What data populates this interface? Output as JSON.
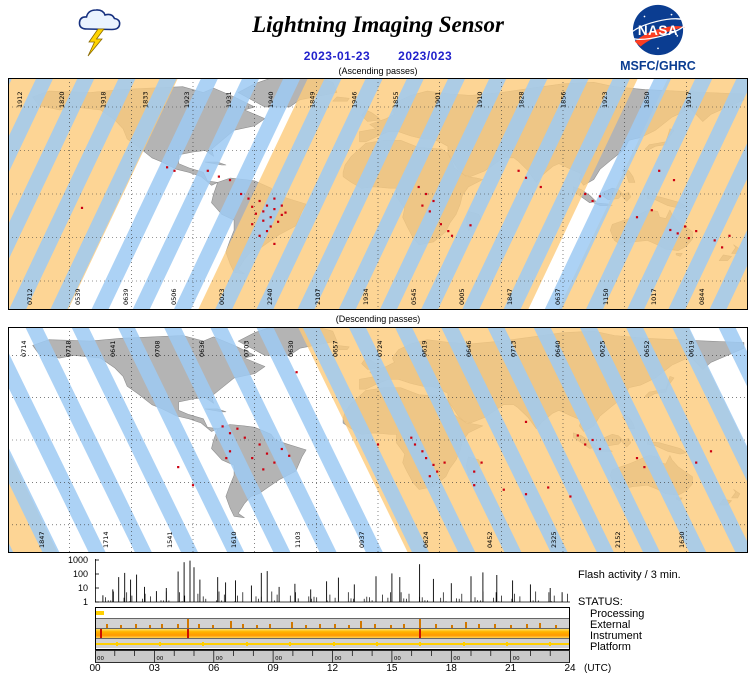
{
  "header": {
    "title": "Lightning Imaging Sensor",
    "date_iso": "2023-01-23",
    "date_doy": "2023/023",
    "agency": "MSFC/GHRC",
    "nasa_logo_text": "NASA"
  },
  "maps": {
    "ascending": {
      "caption": "(Ascending passes)",
      "top_labels": [
        "1912",
        "1820",
        "1918",
        "1833",
        "1923",
        "1931",
        "1940",
        "1849",
        "1946",
        "1855",
        "1901",
        "1910",
        "1828",
        "1856",
        "1923",
        "1850",
        "1917"
      ],
      "bottom_labels": [
        "0712",
        "0539",
        "0639",
        "0506",
        "0023",
        "2240",
        "2107",
        "1934",
        "0545",
        "0005",
        "1847",
        "0637",
        "1150",
        "1017",
        "0844"
      ],
      "flash_dots": [
        [
          0.1,
          0.56
        ],
        [
          0.215,
          0.385
        ],
        [
          0.225,
          0.4
        ],
        [
          0.27,
          0.4
        ],
        [
          0.285,
          0.425
        ],
        [
          0.3,
          0.44
        ],
        [
          0.315,
          0.5
        ],
        [
          0.325,
          0.52
        ],
        [
          0.33,
          0.555
        ],
        [
          0.34,
          0.53
        ],
        [
          0.345,
          0.575
        ],
        [
          0.35,
          0.55
        ],
        [
          0.355,
          0.6
        ],
        [
          0.36,
          0.565
        ],
        [
          0.365,
          0.62
        ],
        [
          0.37,
          0.59
        ],
        [
          0.355,
          0.64
        ],
        [
          0.345,
          0.615
        ],
        [
          0.335,
          0.585
        ],
        [
          0.36,
          0.52
        ],
        [
          0.37,
          0.55
        ],
        [
          0.375,
          0.58
        ],
        [
          0.33,
          0.63
        ],
        [
          0.35,
          0.66
        ],
        [
          0.34,
          0.68
        ],
        [
          0.36,
          0.715
        ],
        [
          0.555,
          0.47
        ],
        [
          0.565,
          0.5
        ],
        [
          0.575,
          0.53
        ],
        [
          0.56,
          0.55
        ],
        [
          0.57,
          0.575
        ],
        [
          0.585,
          0.63
        ],
        [
          0.595,
          0.66
        ],
        [
          0.6,
          0.68
        ],
        [
          0.625,
          0.635
        ],
        [
          0.69,
          0.4
        ],
        [
          0.7,
          0.43
        ],
        [
          0.72,
          0.47
        ],
        [
          0.78,
          0.5
        ],
        [
          0.79,
          0.53
        ],
        [
          0.8,
          0.51
        ],
        [
          0.85,
          0.6
        ],
        [
          0.87,
          0.57
        ],
        [
          0.88,
          0.4
        ],
        [
          0.9,
          0.44
        ],
        [
          0.895,
          0.655
        ],
        [
          0.905,
          0.67
        ],
        [
          0.915,
          0.64
        ],
        [
          0.92,
          0.69
        ],
        [
          0.93,
          0.66
        ],
        [
          0.955,
          0.7
        ],
        [
          0.965,
          0.73
        ],
        [
          0.975,
          0.68
        ]
      ]
    },
    "descending": {
      "caption": "(Descending passes)",
      "top_labels": [
        "0714",
        "0718",
        "0641",
        "0708",
        "0636",
        "0703",
        "0630",
        "0657",
        "0724",
        "0619",
        "0646",
        "0713",
        "0640",
        "0625",
        "0652",
        "0619"
      ],
      "bottom_labels": [
        "1847",
        "1714",
        "1541",
        "1610",
        "1103",
        "0937",
        "0624",
        "0452",
        "2325",
        "2152",
        "1630"
      ],
      "flash_dots": [
        [
          0.23,
          0.62
        ],
        [
          0.25,
          0.7
        ],
        [
          0.29,
          0.44
        ],
        [
          0.3,
          0.47
        ],
        [
          0.31,
          0.45
        ],
        [
          0.32,
          0.49
        ],
        [
          0.3,
          0.55
        ],
        [
          0.295,
          0.58
        ],
        [
          0.34,
          0.52
        ],
        [
          0.35,
          0.56
        ],
        [
          0.36,
          0.6
        ],
        [
          0.345,
          0.63
        ],
        [
          0.37,
          0.54
        ],
        [
          0.33,
          0.58
        ],
        [
          0.38,
          0.57
        ],
        [
          0.39,
          0.2
        ],
        [
          0.5,
          0.52
        ],
        [
          0.545,
          0.49
        ],
        [
          0.55,
          0.52
        ],
        [
          0.56,
          0.55
        ],
        [
          0.565,
          0.58
        ],
        [
          0.575,
          0.61
        ],
        [
          0.58,
          0.64
        ],
        [
          0.59,
          0.6
        ],
        [
          0.57,
          0.66
        ],
        [
          0.63,
          0.64
        ],
        [
          0.64,
          0.6
        ],
        [
          0.7,
          0.42
        ],
        [
          0.77,
          0.48
        ],
        [
          0.78,
          0.52
        ],
        [
          0.79,
          0.5
        ],
        [
          0.8,
          0.54
        ],
        [
          0.85,
          0.58
        ],
        [
          0.86,
          0.62
        ],
        [
          0.63,
          0.7
        ],
        [
          0.67,
          0.72
        ],
        [
          0.7,
          0.74
        ],
        [
          0.73,
          0.71
        ],
        [
          0.76,
          0.75
        ],
        [
          0.93,
          0.6
        ],
        [
          0.95,
          0.55
        ]
      ]
    }
  },
  "timeline": {
    "flash_label": "Flash activity / 3 min.",
    "status_title": "STATUS:",
    "status_rows": [
      "Processing",
      "External",
      "Instrument",
      "Platform"
    ],
    "yticks": [
      "1000",
      "100",
      "10",
      "1"
    ],
    "xticks": [
      "00",
      "03",
      "06",
      "09",
      "12",
      "15",
      "18",
      "21",
      "24"
    ],
    "x_unit": "(UTC)",
    "minor_tick_label": "00",
    "processing_segments": [
      [
        0.0,
        0.4
      ]
    ],
    "external_marks": [
      [
        0.5,
        0.4
      ],
      [
        1.2,
        0.3
      ],
      [
        2.0,
        0.5
      ],
      [
        2.7,
        0.3
      ],
      [
        3.3,
        0.4
      ],
      [
        4.1,
        0.5
      ],
      [
        4.6,
        1.0
      ],
      [
        5.2,
        0.4
      ],
      [
        5.9,
        0.3
      ],
      [
        6.8,
        0.8
      ],
      [
        7.4,
        0.4
      ],
      [
        8.1,
        0.3
      ],
      [
        8.8,
        0.5
      ],
      [
        9.9,
        0.7
      ],
      [
        10.6,
        0.3
      ],
      [
        11.3,
        0.4
      ],
      [
        12.1,
        0.5
      ],
      [
        12.8,
        0.3
      ],
      [
        13.4,
        0.8
      ],
      [
        14.1,
        0.4
      ],
      [
        14.9,
        0.3
      ],
      [
        15.6,
        0.5
      ],
      [
        16.4,
        1.0
      ],
      [
        17.2,
        0.4
      ],
      [
        18.0,
        0.3
      ],
      [
        18.7,
        0.7
      ],
      [
        19.4,
        0.4
      ],
      [
        20.2,
        0.5
      ],
      [
        21.0,
        0.3
      ],
      [
        21.8,
        0.4
      ],
      [
        22.5,
        0.6
      ],
      [
        23.3,
        0.3
      ]
    ],
    "instrument_red_ticks": [
      0.2,
      4.6,
      16.4
    ],
    "platform_ticks": [
      1.0,
      3.2,
      5.4,
      7.6,
      9.8,
      12.0,
      14.2,
      16.4,
      18.6,
      20.8,
      23.0
    ]
  },
  "chart_data": {
    "type": "bar",
    "title": "Flash activity / 3 min.",
    "xlabel": "(UTC)",
    "ylabel": "",
    "x_range_hours": [
      0,
      24
    ],
    "y_scale": "log",
    "ylim": [
      1,
      1000
    ],
    "x_tick_labels": [
      "00",
      "03",
      "06",
      "09",
      "12",
      "15",
      "18",
      "21",
      "24"
    ],
    "spikes_hour_value": [
      [
        0.4,
        3
      ],
      [
        0.9,
        8
      ],
      [
        1.2,
        60
      ],
      [
        1.5,
        120
      ],
      [
        1.8,
        40
      ],
      [
        2.1,
        90
      ],
      [
        2.5,
        12
      ],
      [
        3.1,
        6
      ],
      [
        3.6,
        10
      ],
      [
        4.2,
        150
      ],
      [
        4.5,
        700
      ],
      [
        4.8,
        900
      ],
      [
        5.0,
        300
      ],
      [
        5.3,
        40
      ],
      [
        6.2,
        60
      ],
      [
        6.6,
        25
      ],
      [
        7.1,
        35
      ],
      [
        7.9,
        15
      ],
      [
        8.4,
        120
      ],
      [
        8.7,
        160
      ],
      [
        9.3,
        12
      ],
      [
        10.1,
        20
      ],
      [
        10.9,
        8
      ],
      [
        11.7,
        30
      ],
      [
        12.3,
        55
      ],
      [
        13.1,
        18
      ],
      [
        14.2,
        70
      ],
      [
        15.0,
        110
      ],
      [
        15.4,
        60
      ],
      [
        16.4,
        500
      ],
      [
        17.1,
        45
      ],
      [
        18.0,
        22
      ],
      [
        19.0,
        70
      ],
      [
        19.6,
        130
      ],
      [
        20.3,
        85
      ],
      [
        21.1,
        35
      ],
      [
        22.0,
        18
      ],
      [
        23.0,
        10
      ],
      [
        23.6,
        5
      ]
    ]
  },
  "colors": {
    "swath_day": "#fcca7a",
    "swath_night": "#9ecaf3",
    "land": "#b4b4b4",
    "land_edge": "#8f8f8f",
    "flash": "#cc0011",
    "link_blue": "#2222cc",
    "nasa_blue": "#0b3d91",
    "nasa_red": "#fc3d21",
    "status_yellow": "#ffcf00",
    "status_orange": "#d17800",
    "panel_gray": "#c9c9c9"
  }
}
